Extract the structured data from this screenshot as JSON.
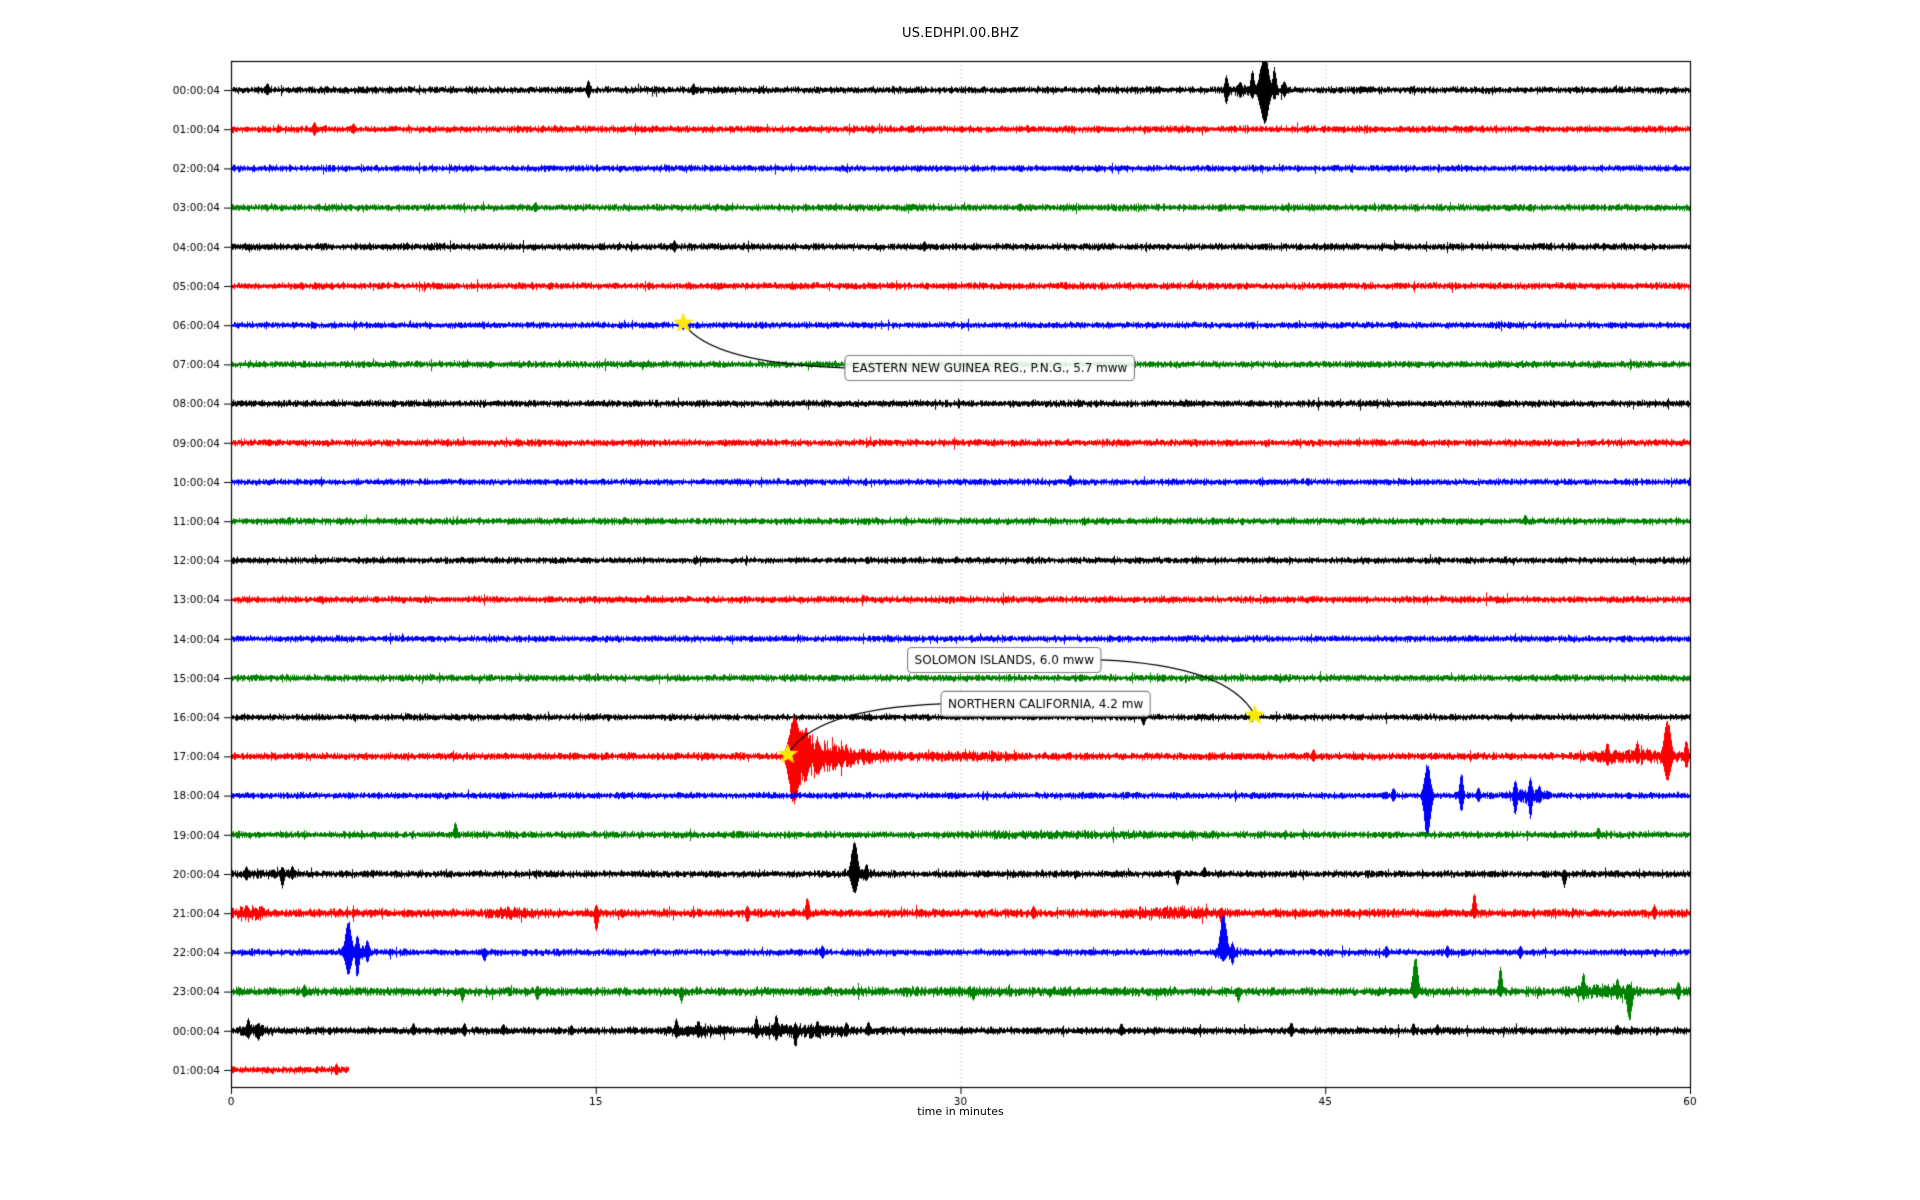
{
  "chart_data": {
    "type": "line",
    "subtype": "helicorder-dayplot",
    "title": "US.EDHPI.00.BHZ",
    "xlabel": "time in minutes",
    "x_axis": {
      "range": [
        0,
        60
      ],
      "ticks": [
        "0",
        "15",
        "30",
        "45",
        "60"
      ],
      "tick_values": [
        0,
        15,
        30,
        45,
        60
      ],
      "gridlines": [
        15,
        30,
        45
      ],
      "grid_style": "dotted"
    },
    "y_axis": {
      "labels_note": "one label per hourly trace row"
    },
    "trace_color_cycle": [
      "#000000",
      "#ff0000",
      "#0000ff",
      "#008000"
    ],
    "star_color": "#ffe800",
    "annotation_box_border": "#7f7f7f",
    "rows": [
      {
        "label": "00:00:04",
        "color": "#000000",
        "amp": 4.5,
        "bursts": [
          [
            40.4,
            43.6,
            3
          ]
        ],
        "spikes": [
          [
            1.5,
            7,
            6
          ],
          [
            14.7,
            10,
            9
          ],
          [
            19.0,
            7,
            6
          ],
          [
            40.9,
            15,
            15
          ],
          [
            41.5,
            9,
            9
          ],
          [
            42.0,
            21,
            10
          ],
          [
            42.5,
            38,
            36,
            0.16
          ],
          [
            42.9,
            24,
            11
          ],
          [
            43.3,
            10,
            8
          ]
        ]
      },
      {
        "label": "01:00:04",
        "color": "#ff0000",
        "amp": 4.5,
        "spikes": [
          [
            3.4,
            8,
            7
          ],
          [
            5.0,
            6,
            5
          ]
        ]
      },
      {
        "label": "02:00:04",
        "color": "#0000ff",
        "amp": 4.2
      },
      {
        "label": "03:00:04",
        "color": "#008000",
        "amp": 4.5,
        "spikes": [
          [
            12.5,
            6,
            5
          ]
        ]
      },
      {
        "label": "04:00:04",
        "color": "#000000",
        "amp": 4.5,
        "spikes": [
          [
            18.2,
            7,
            6
          ],
          [
            28.5,
            6,
            5
          ]
        ]
      },
      {
        "label": "05:00:04",
        "color": "#ff0000",
        "amp": 4.5
      },
      {
        "label": "06:00:04",
        "color": "#0000ff",
        "amp": 4.2,
        "spikes": [
          [
            18.6,
            7,
            5
          ]
        ]
      },
      {
        "label": "07:00:04",
        "color": "#008000",
        "amp": 4.5
      },
      {
        "label": "08:00:04",
        "color": "#000000",
        "amp": 4.5
      },
      {
        "label": "09:00:04",
        "color": "#ff0000",
        "amp": 4.5
      },
      {
        "label": "10:00:04",
        "color": "#0000ff",
        "amp": 4.2,
        "spikes": [
          [
            34.5,
            7,
            5
          ]
        ]
      },
      {
        "label": "11:00:04",
        "color": "#008000",
        "amp": 4.5,
        "spikes": [
          [
            53.2,
            7,
            4
          ]
        ]
      },
      {
        "label": "12:00:04",
        "color": "#000000",
        "amp": 4.2
      },
      {
        "label": "13:00:04",
        "color": "#ff0000",
        "amp": 4.5
      },
      {
        "label": "14:00:04",
        "color": "#0000ff",
        "amp": 4.2
      },
      {
        "label": "15:00:04",
        "color": "#008000",
        "amp": 4.5
      },
      {
        "label": "16:00:04",
        "color": "#000000",
        "amp": 4.2,
        "spikes": [
          [
            37.5,
            4,
            9
          ]
        ]
      },
      {
        "label": "17:00:04",
        "color": "#ff0000",
        "amp": 4.8,
        "bursts": [
          [
            23.0,
            28.5,
            34,
            "decay"
          ],
          [
            28,
            33,
            2
          ],
          [
            55.3,
            60,
            4
          ]
        ],
        "spikes": [
          [
            23.15,
            42,
            52,
            0.2
          ],
          [
            23.6,
            30,
            26,
            0.15
          ],
          [
            24.1,
            20,
            16
          ],
          [
            24.8,
            13,
            11
          ],
          [
            26.0,
            9,
            8
          ],
          [
            44.5,
            8,
            6
          ],
          [
            56.6,
            15,
            11
          ],
          [
            57.8,
            17,
            9
          ],
          [
            59.05,
            38,
            26,
            0.13
          ],
          [
            59.85,
            18,
            13
          ]
        ]
      },
      {
        "label": "18:00:04",
        "color": "#0000ff",
        "amp": 4.2,
        "bursts": [
          [
            52.4,
            54.3,
            5
          ]
        ],
        "spikes": [
          [
            47.8,
            8,
            7
          ],
          [
            49.2,
            33,
            44,
            0.12
          ],
          [
            50.6,
            24,
            17
          ],
          [
            51.3,
            9,
            7
          ],
          [
            52.8,
            17,
            21
          ],
          [
            53.4,
            19,
            24
          ],
          [
            53.8,
            11,
            9
          ]
        ]
      },
      {
        "label": "19:00:04",
        "color": "#008000",
        "amp": 4.5,
        "bursts": [
          [
            29,
            41,
            1.2
          ]
        ],
        "spikes": [
          [
            9.2,
            14,
            4
          ],
          [
            56.2,
            8,
            5
          ]
        ]
      },
      {
        "label": "20:00:04",
        "color": "#000000",
        "amp": 4.5,
        "bursts": [
          [
            0.3,
            3,
            2
          ],
          [
            25.1,
            26.5,
            3
          ]
        ],
        "spikes": [
          [
            0.6,
            8,
            7
          ],
          [
            2.1,
            8,
            15
          ],
          [
            2.5,
            9,
            6
          ],
          [
            25.6,
            36,
            21,
            0.12
          ],
          [
            26.1,
            11,
            8
          ],
          [
            38.9,
            4,
            12
          ],
          [
            40.0,
            8,
            4
          ],
          [
            54.8,
            5,
            14
          ]
        ]
      },
      {
        "label": "21:00:04",
        "color": "#ff0000",
        "amp": 5.5,
        "bursts": [
          [
            0,
            1.6,
            4
          ],
          [
            10.4,
            12.6,
            2.5
          ],
          [
            36.3,
            41,
            3
          ]
        ],
        "spikes": [
          [
            15.0,
            9,
            21
          ],
          [
            21.2,
            8,
            10
          ],
          [
            23.7,
            17,
            8
          ],
          [
            33.0,
            8,
            7
          ],
          [
            40.7,
            6,
            12
          ],
          [
            51.1,
            21,
            6
          ],
          [
            58.5,
            9,
            7
          ]
        ]
      },
      {
        "label": "22:00:04",
        "color": "#0000ff",
        "amp": 4.4,
        "bursts": [
          [
            4.4,
            5.8,
            5
          ],
          [
            40.3,
            41.5,
            4
          ]
        ],
        "spikes": [
          [
            4.8,
            33,
            24,
            0.12
          ],
          [
            5.2,
            19,
            28
          ],
          [
            5.6,
            14,
            11
          ],
          [
            10.4,
            5,
            10
          ],
          [
            24.3,
            7,
            7
          ],
          [
            40.8,
            43,
            10,
            0.12
          ],
          [
            41.15,
            11,
            13
          ],
          [
            47.5,
            7,
            6
          ],
          [
            50.0,
            7,
            6
          ],
          [
            53.0,
            7,
            7
          ]
        ]
      },
      {
        "label": "23:00:04",
        "color": "#008000",
        "amp": 5.4,
        "bursts": [
          [
            20,
            40,
            0.8
          ],
          [
            54.6,
            58.2,
            4
          ]
        ],
        "spikes": [
          [
            3.0,
            8,
            6
          ],
          [
            9.5,
            5,
            11
          ],
          [
            12.6,
            6,
            10
          ],
          [
            18.5,
            5,
            12
          ],
          [
            30.5,
            5,
            10
          ],
          [
            41.4,
            5,
            12
          ],
          [
            48.7,
            38,
            8,
            0.1
          ],
          [
            52.2,
            26,
            6
          ],
          [
            55.6,
            20,
            9
          ],
          [
            57.0,
            15,
            8
          ],
          [
            57.5,
            8,
            32,
            0.1
          ],
          [
            59.5,
            11,
            9
          ]
        ]
      },
      {
        "label": "00:00:04",
        "color": "#000000",
        "amp": 4.8,
        "bursts": [
          [
            0.2,
            1.8,
            3
          ],
          [
            17.5,
            20.8,
            3
          ],
          [
            21.0,
            26,
            4
          ]
        ],
        "spikes": [
          [
            0.7,
            13,
            9
          ],
          [
            1.1,
            9,
            11
          ],
          [
            7.5,
            8,
            5
          ],
          [
            9.6,
            8,
            6
          ],
          [
            11.2,
            7,
            5
          ],
          [
            14.0,
            6,
            5
          ],
          [
            18.3,
            13,
            8
          ],
          [
            19.2,
            11,
            8
          ],
          [
            21.6,
            15,
            9
          ],
          [
            22.4,
            17,
            11
          ],
          [
            23.2,
            9,
            18
          ],
          [
            24.1,
            11,
            8
          ],
          [
            25.3,
            9,
            7
          ],
          [
            26.2,
            10,
            6
          ],
          [
            36.6,
            8,
            6
          ],
          [
            43.6,
            9,
            7
          ],
          [
            48.6,
            8,
            5
          ],
          [
            49.6,
            7,
            5
          ],
          [
            57.0,
            7,
            5
          ]
        ]
      },
      {
        "label": "01:00:04",
        "color": "#ff0000",
        "amp": 4.5,
        "end": 4.85,
        "spikes": [
          [
            4.3,
            7,
            6
          ]
        ]
      }
    ],
    "annotations": [
      {
        "text": "EASTERN NEW GUINEA REG., P.N.G., 5.7 mww",
        "star": {
          "minute": 18.6,
          "row": 6
        },
        "box": {
          "minute": 31.2,
          "row": 7.09
        }
      },
      {
        "text": "SOLOMON ISLANDS, 6.0 mww",
        "star": {
          "minute": 42.1,
          "row": 16
        },
        "box": {
          "minute": 31.8,
          "row": 14.54
        }
      },
      {
        "text": "NORTHERN CALIFORNIA, 4.2 mw",
        "star": {
          "minute": 22.9,
          "row": 17
        },
        "box": {
          "minute": 33.5,
          "row": 15.66
        }
      }
    ]
  }
}
